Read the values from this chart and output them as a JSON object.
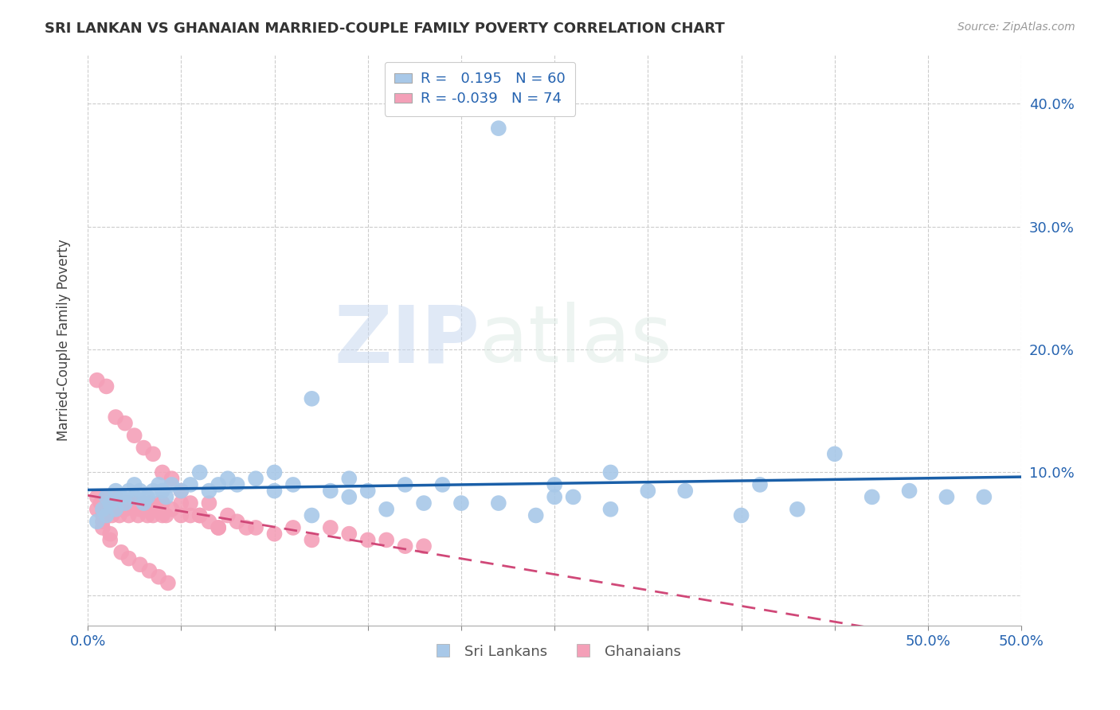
{
  "title": "SRI LANKAN VS GHANAIAN MARRIED-COUPLE FAMILY POVERTY CORRELATION CHART",
  "source": "Source: ZipAtlas.com",
  "ylabel": "Married-Couple Family Poverty",
  "xlim": [
    0.0,
    0.5
  ],
  "ylim": [
    -0.025,
    0.44
  ],
  "xticks": [
    0.0,
    0.05,
    0.1,
    0.15,
    0.2,
    0.25,
    0.3,
    0.35,
    0.4,
    0.45,
    0.5
  ],
  "xtick_labels_show": {
    "0.0": "0.0%",
    "0.5": "50.0%"
  },
  "yticks": [
    0.0,
    0.1,
    0.2,
    0.3,
    0.4
  ],
  "ytick_labels": [
    "",
    "10.0%",
    "20.0%",
    "30.0%",
    "40.0%"
  ],
  "sri_lankans_color": "#a8c8e8",
  "ghanaians_color": "#f4a0b8",
  "sri_lankans_line_color": "#1a5fa8",
  "ghanaians_line_color": "#d04878",
  "sri_lankans_R": 0.195,
  "sri_lankans_N": 60,
  "ghanaians_R": -0.039,
  "ghanaians_N": 74,
  "watermark_zip": "ZIP",
  "watermark_atlas": "atlas",
  "background_color": "#ffffff",
  "grid_color": "#cccccc",
  "sri_lankans_x": [
    0.005,
    0.008,
    0.01,
    0.01,
    0.012,
    0.015,
    0.015,
    0.018,
    0.02,
    0.022,
    0.025,
    0.025,
    0.028,
    0.03,
    0.032,
    0.035,
    0.038,
    0.04,
    0.042,
    0.045,
    0.05,
    0.055,
    0.06,
    0.065,
    0.07,
    0.075,
    0.08,
    0.09,
    0.1,
    0.11,
    0.12,
    0.13,
    0.14,
    0.15,
    0.17,
    0.19,
    0.22,
    0.25,
    0.28,
    0.32,
    0.36,
    0.4,
    0.44,
    0.48,
    0.25,
    0.3,
    0.35,
    0.38,
    0.42,
    0.46,
    0.2,
    0.24,
    0.28,
    0.22,
    0.26,
    0.18,
    0.16,
    0.14,
    0.12,
    0.1
  ],
  "sri_lankans_y": [
    0.06,
    0.07,
    0.065,
    0.08,
    0.075,
    0.07,
    0.085,
    0.08,
    0.075,
    0.085,
    0.08,
    0.09,
    0.085,
    0.075,
    0.08,
    0.085,
    0.09,
    0.085,
    0.08,
    0.09,
    0.085,
    0.09,
    0.1,
    0.085,
    0.09,
    0.095,
    0.09,
    0.095,
    0.085,
    0.09,
    0.16,
    0.085,
    0.095,
    0.085,
    0.09,
    0.09,
    0.075,
    0.08,
    0.1,
    0.085,
    0.09,
    0.115,
    0.085,
    0.08,
    0.09,
    0.085,
    0.065,
    0.07,
    0.08,
    0.08,
    0.075,
    0.065,
    0.07,
    0.38,
    0.08,
    0.075,
    0.07,
    0.08,
    0.065,
    0.1
  ],
  "ghanaians_x": [
    0.005,
    0.005,
    0.007,
    0.008,
    0.01,
    0.01,
    0.012,
    0.013,
    0.015,
    0.015,
    0.017,
    0.018,
    0.02,
    0.02,
    0.022,
    0.022,
    0.025,
    0.025,
    0.027,
    0.028,
    0.03,
    0.03,
    0.032,
    0.033,
    0.035,
    0.035,
    0.038,
    0.04,
    0.04,
    0.042,
    0.045,
    0.05,
    0.05,
    0.055,
    0.06,
    0.065,
    0.07,
    0.075,
    0.08,
    0.085,
    0.09,
    0.1,
    0.11,
    0.12,
    0.13,
    0.14,
    0.15,
    0.16,
    0.17,
    0.18,
    0.01,
    0.015,
    0.02,
    0.025,
    0.03,
    0.035,
    0.04,
    0.045,
    0.05,
    0.055,
    0.06,
    0.065,
    0.07,
    0.008,
    0.012,
    0.018,
    0.022,
    0.028,
    0.033,
    0.038,
    0.043,
    0.005,
    0.008,
    0.012
  ],
  "ghanaians_y": [
    0.07,
    0.08,
    0.075,
    0.065,
    0.08,
    0.07,
    0.075,
    0.065,
    0.08,
    0.075,
    0.065,
    0.07,
    0.075,
    0.07,
    0.065,
    0.075,
    0.07,
    0.075,
    0.065,
    0.07,
    0.075,
    0.07,
    0.065,
    0.075,
    0.065,
    0.07,
    0.075,
    0.065,
    0.075,
    0.065,
    0.07,
    0.065,
    0.075,
    0.065,
    0.065,
    0.075,
    0.055,
    0.065,
    0.06,
    0.055,
    0.055,
    0.05,
    0.055,
    0.045,
    0.055,
    0.05,
    0.045,
    0.045,
    0.04,
    0.04,
    0.17,
    0.145,
    0.14,
    0.13,
    0.12,
    0.115,
    0.1,
    0.095,
    0.085,
    0.075,
    0.065,
    0.06,
    0.055,
    0.055,
    0.045,
    0.035,
    0.03,
    0.025,
    0.02,
    0.015,
    0.01,
    0.175,
    0.06,
    0.05
  ]
}
